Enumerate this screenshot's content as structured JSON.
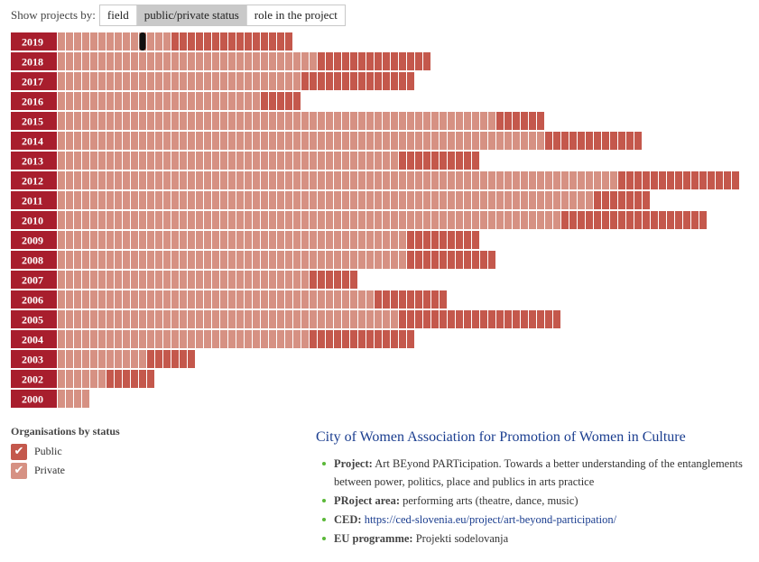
{
  "toolbar": {
    "label": "Show projects by:",
    "options": [
      "field",
      "public/private status",
      "role in the project"
    ],
    "active": "public/private status"
  },
  "colors": {
    "year_label_bg": "#a81e2d",
    "public": "#c4584c",
    "private": "#d69183",
    "selected": "#111111",
    "accent_link": "#1a3d8f",
    "bullet": "#5ab838"
  },
  "chart_data": {
    "type": "bar",
    "orientation": "horizontal-stacked-units",
    "title": "",
    "unit": "project",
    "categories": [
      "2019",
      "2018",
      "2017",
      "2016",
      "2015",
      "2014",
      "2013",
      "2012",
      "2011",
      "2010",
      "2009",
      "2008",
      "2007",
      "2006",
      "2005",
      "2004",
      "2003",
      "2002",
      "2000"
    ],
    "series": [
      {
        "name": "Private",
        "values": [
          14,
          32,
          30,
          25,
          54,
          60,
          42,
          69,
          66,
          62,
          43,
          43,
          31,
          39,
          42,
          31,
          11,
          6,
          4
        ]
      },
      {
        "name": "Public",
        "values": [
          15,
          14,
          14,
          5,
          6,
          12,
          10,
          15,
          7,
          18,
          9,
          11,
          6,
          9,
          20,
          13,
          6,
          6,
          0
        ]
      }
    ],
    "selected": {
      "year": "2019",
      "index": 10
    }
  },
  "legend": {
    "title": "Organisations by status",
    "items": [
      {
        "label": "Public",
        "color": "#c4584c",
        "check": "✔"
      },
      {
        "label": "Private",
        "color": "#d69183",
        "check": "✔"
      }
    ]
  },
  "info": {
    "organisation": "City of Women Association for Promotion of Women in Culture",
    "project_label": "Project:",
    "project_value": "Art BEyond PARTicipation. Towards a better understanding of the entanglements between power, politics, place and publics in arts practice",
    "area_label": "PRoject area:",
    "area_value": "performing arts (theatre, dance, music)",
    "ced_label": "CED:",
    "ced_value": "https://ced-slovenia.eu/project/art-beyond-participation/",
    "eu_label": "EU programme:",
    "eu_value": "Projekti sodelovanja"
  }
}
